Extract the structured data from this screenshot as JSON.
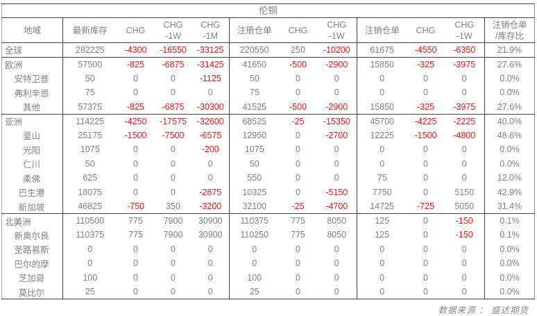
{
  "title": "伦铜",
  "source_note": "数据来源 ： 盛达期货",
  "colors": {
    "text": "#808080",
    "negative": "#ff1111",
    "border_dark": "#3f3f3f",
    "border_light": "#a9a9a9",
    "background": "#ffffff"
  },
  "chart_data": {
    "type": "table",
    "title": "伦铜",
    "columns": [
      {
        "label": "地域"
      },
      {
        "label": "最新库存"
      },
      {
        "label": "CHG"
      },
      {
        "label": "CHG",
        "sub": "-1W"
      },
      {
        "label": "CHG",
        "sub": "-1M"
      },
      {
        "label": "注册仓单"
      },
      {
        "label": "CHG"
      },
      {
        "label": "CHG",
        "sub": "-1W"
      },
      {
        "label": "注销仓单"
      },
      {
        "label": "CHG"
      },
      {
        "label": "CHG",
        "sub": "-1W"
      },
      {
        "label": "注销仓单",
        "sub": "/库存比"
      }
    ],
    "rows": [
      {
        "region": "全球",
        "level": "region",
        "group_end": true,
        "values": [
          282225,
          -4300,
          -16550,
          -33125,
          220550,
          250,
          -10200,
          61675,
          -4550,
          -6350,
          "21.9%"
        ]
      },
      {
        "region": "欧洲",
        "level": "region",
        "group_end": false,
        "values": [
          57500,
          -825,
          -6875,
          -31425,
          41650,
          -500,
          -2900,
          15850,
          -325,
          -3975,
          "27.6%"
        ]
      },
      {
        "region": "安特卫普",
        "level": "city",
        "group_end": false,
        "values": [
          50,
          0,
          0,
          -1125,
          50,
          0,
          0,
          0,
          0,
          0,
          "0.0%"
        ]
      },
      {
        "region": "弗利辛恩",
        "level": "city",
        "group_end": false,
        "values": [
          75,
          0,
          0,
          0,
          75,
          0,
          0,
          0,
          0,
          0,
          "0.0%"
        ]
      },
      {
        "region": "其他",
        "level": "city",
        "group_end": true,
        "values": [
          57375,
          -825,
          -6875,
          -30300,
          41525,
          -500,
          -2900,
          15850,
          -325,
          -3975,
          "27.6%"
        ]
      },
      {
        "region": "亚洲",
        "level": "region",
        "group_end": false,
        "values": [
          114225,
          -4250,
          -17575,
          -32600,
          68525,
          -25,
          -15350,
          45700,
          -4225,
          -2225,
          "40.0%"
        ]
      },
      {
        "region": "釜山",
        "level": "city",
        "group_end": false,
        "values": [
          25175,
          -1500,
          -7500,
          -6575,
          12950,
          0,
          -2700,
          12225,
          -1500,
          -4800,
          "48.6%"
        ]
      },
      {
        "region": "光阳",
        "level": "city",
        "group_end": false,
        "values": [
          1075,
          0,
          0,
          -200,
          1075,
          0,
          0,
          0,
          0,
          0,
          "0.0%"
        ]
      },
      {
        "region": "仁川",
        "level": "city",
        "group_end": false,
        "values": [
          50,
          0,
          0,
          0,
          50,
          0,
          0,
          0,
          0,
          0,
          "0.0%"
        ]
      },
      {
        "region": "柔佛",
        "level": "city",
        "group_end": false,
        "values": [
          625,
          0,
          0,
          0,
          550,
          0,
          0,
          75,
          0,
          0,
          "12.0%"
        ]
      },
      {
        "region": "巴生港",
        "level": "city",
        "group_end": false,
        "values": [
          18075,
          0,
          0,
          -2875,
          10325,
          0,
          -5150,
          7750,
          0,
          5150,
          "42.9%"
        ]
      },
      {
        "region": "新加坡",
        "level": "city",
        "group_end": true,
        "values": [
          46825,
          -750,
          350,
          -3200,
          32100,
          -25,
          -4700,
          14725,
          -725,
          5050,
          "31.4%"
        ]
      },
      {
        "region": "北美洲",
        "level": "region",
        "group_end": false,
        "values": [
          110500,
          775,
          7900,
          30900,
          110375,
          775,
          8050,
          125,
          0,
          -150,
          "0.1%"
        ]
      },
      {
        "region": "新奥尔良",
        "level": "city",
        "group_end": false,
        "values": [
          110375,
          775,
          7900,
          30900,
          110250,
          775,
          8050,
          125,
          0,
          -150,
          "0.1%"
        ]
      },
      {
        "region": "圣路易斯",
        "level": "city",
        "group_end": false,
        "values": [
          0,
          0,
          0,
          0,
          0,
          0,
          0,
          0,
          0,
          0,
          "0.0%"
        ]
      },
      {
        "region": "巴尔的摩",
        "level": "city",
        "group_end": false,
        "values": [
          0,
          0,
          0,
          0,
          0,
          0,
          0,
          0,
          0,
          0,
          "0.0%"
        ]
      },
      {
        "region": "芝加哥",
        "level": "city",
        "group_end": false,
        "values": [
          100,
          0,
          0,
          0,
          100,
          0,
          0,
          0,
          0,
          0,
          "0.0%"
        ]
      },
      {
        "region": "莫比尔",
        "level": "city",
        "group_end": false,
        "values": [
          25,
          0,
          0,
          0,
          25,
          0,
          0,
          0,
          0,
          0,
          "0.0%"
        ]
      }
    ]
  }
}
